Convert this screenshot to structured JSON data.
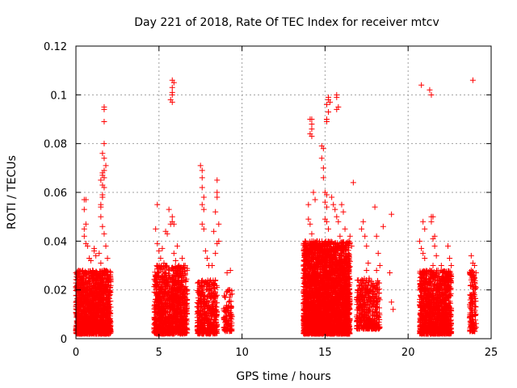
{
  "chart_data": {
    "type": "scatter",
    "title": "Day 221 of 2018, Rate Of TEC Index for receiver mtcv",
    "xlabel": "GPS time / hours",
    "ylabel": "ROTI / TECUs",
    "xlim": [
      0,
      25
    ],
    "ylim": [
      0,
      0.12
    ],
    "xticks": [
      0,
      5,
      10,
      15,
      20,
      25
    ],
    "xtick_labels": [
      "0",
      "5",
      "10",
      "15",
      "20",
      "25"
    ],
    "yticks": [
      0,
      0.02,
      0.04,
      0.06,
      0.08,
      0.1,
      0.12
    ],
    "ytick_labels": [
      "0",
      "0.02",
      "0.04",
      "0.06",
      "0.08",
      "0.1",
      "0.12"
    ],
    "grid": true,
    "marker": "+",
    "color": "#ff0000",
    "series": [
      {
        "name": "ROTI",
        "points": [
          [
            0.0,
            0.027
          ],
          [
            0.1,
            0.021
          ],
          [
            0.2,
            0.02
          ],
          [
            0.4,
            0.024
          ],
          [
            0.5,
            0.057
          ],
          [
            0.6,
            0.057
          ],
          [
            0.5,
            0.053
          ],
          [
            0.6,
            0.047
          ],
          [
            0.5,
            0.045
          ],
          [
            0.5,
            0.042
          ],
          [
            0.6,
            0.039
          ],
          [
            0.7,
            0.038
          ],
          [
            0.8,
            0.033
          ],
          [
            0.9,
            0.032
          ],
          [
            1.0,
            0.028
          ],
          [
            1.1,
            0.037
          ],
          [
            1.1,
            0.036
          ],
          [
            1.2,
            0.034
          ],
          [
            1.3,
            0.025
          ],
          [
            1.4,
            0.035
          ],
          [
            1.5,
            0.055
          ],
          [
            1.5,
            0.054
          ],
          [
            1.6,
            0.058
          ],
          [
            1.6,
            0.059
          ],
          [
            1.5,
            0.065
          ],
          [
            1.6,
            0.068
          ],
          [
            1.7,
            0.069
          ],
          [
            1.6,
            0.067
          ],
          [
            1.7,
            0.066
          ],
          [
            1.7,
            0.062
          ],
          [
            1.6,
            0.063
          ],
          [
            1.7,
            0.094
          ],
          [
            1.7,
            0.095
          ],
          [
            1.7,
            0.089
          ],
          [
            1.7,
            0.08
          ],
          [
            1.6,
            0.076
          ],
          [
            1.7,
            0.074
          ],
          [
            1.8,
            0.071
          ],
          [
            1.5,
            0.05
          ],
          [
            1.6,
            0.046
          ],
          [
            1.7,
            0.043
          ],
          [
            1.8,
            0.038
          ],
          [
            1.9,
            0.033
          ],
          [
            1.5,
            0.031
          ],
          [
            4.9,
            0.055
          ],
          [
            4.8,
            0.045
          ],
          [
            4.9,
            0.039
          ],
          [
            5.0,
            0.036
          ],
          [
            5.1,
            0.033
          ],
          [
            5.2,
            0.037
          ],
          [
            5.3,
            0.031
          ],
          [
            5.4,
            0.044
          ],
          [
            5.5,
            0.043
          ],
          [
            5.6,
            0.053
          ],
          [
            5.7,
            0.047
          ],
          [
            5.8,
            0.048
          ],
          [
            5.8,
            0.05
          ],
          [
            5.9,
            0.047
          ],
          [
            5.7,
            0.098
          ],
          [
            5.8,
            0.097
          ],
          [
            5.8,
            0.1
          ],
          [
            5.8,
            0.103
          ],
          [
            5.8,
            0.106
          ],
          [
            5.9,
            0.105
          ],
          [
            5.8,
            0.101
          ],
          [
            5.9,
            0.035
          ],
          [
            6.0,
            0.032
          ],
          [
            6.1,
            0.038
          ],
          [
            6.2,
            0.03
          ],
          [
            6.4,
            0.033
          ],
          [
            6.5,
            0.03
          ],
          [
            6.1,
            0.028
          ],
          [
            7.5,
            0.071
          ],
          [
            7.6,
            0.069
          ],
          [
            7.6,
            0.066
          ],
          [
            7.6,
            0.062
          ],
          [
            7.7,
            0.058
          ],
          [
            7.6,
            0.055
          ],
          [
            7.7,
            0.053
          ],
          [
            7.6,
            0.047
          ],
          [
            7.7,
            0.045
          ],
          [
            7.8,
            0.036
          ],
          [
            7.9,
            0.033
          ],
          [
            8.0,
            0.03
          ],
          [
            8.1,
            0.024
          ],
          [
            8.2,
            0.03
          ],
          [
            8.3,
            0.044
          ],
          [
            8.4,
            0.035
          ],
          [
            8.5,
            0.065
          ],
          [
            8.5,
            0.06
          ],
          [
            8.5,
            0.058
          ],
          [
            8.4,
            0.052
          ],
          [
            8.6,
            0.047
          ],
          [
            8.6,
            0.04
          ],
          [
            8.5,
            0.039
          ],
          [
            8.4,
            0.024
          ],
          [
            8.5,
            0.021
          ],
          [
            9.1,
            0.027
          ],
          [
            9.3,
            0.028
          ],
          [
            9.2,
            0.02
          ],
          [
            9.3,
            0.018
          ],
          [
            9.2,
            0.015
          ],
          [
            13.8,
            0.028
          ],
          [
            13.9,
            0.035
          ],
          [
            14.0,
            0.055
          ],
          [
            14.0,
            0.049
          ],
          [
            14.1,
            0.047
          ],
          [
            14.2,
            0.043
          ],
          [
            14.3,
            0.04
          ],
          [
            14.1,
            0.09
          ],
          [
            14.2,
            0.09
          ],
          [
            14.2,
            0.088
          ],
          [
            14.2,
            0.086
          ],
          [
            14.1,
            0.084
          ],
          [
            14.2,
            0.083
          ],
          [
            14.3,
            0.06
          ],
          [
            14.4,
            0.057
          ],
          [
            14.5,
            0.04
          ],
          [
            14.6,
            0.038
          ],
          [
            14.7,
            0.036
          ],
          [
            14.8,
            0.079
          ],
          [
            14.9,
            0.078
          ],
          [
            14.8,
            0.074
          ],
          [
            14.9,
            0.07
          ],
          [
            14.9,
            0.066
          ],
          [
            15.0,
            0.06
          ],
          [
            15.1,
            0.059
          ],
          [
            15.0,
            0.056
          ],
          [
            15.1,
            0.054
          ],
          [
            15.0,
            0.049
          ],
          [
            15.1,
            0.048
          ],
          [
            15.2,
            0.045
          ],
          [
            15.1,
            0.09
          ],
          [
            15.2,
            0.093
          ],
          [
            15.1,
            0.089
          ],
          [
            15.1,
            0.096
          ],
          [
            15.2,
            0.099
          ],
          [
            15.2,
            0.098
          ],
          [
            15.3,
            0.097
          ],
          [
            15.4,
            0.058
          ],
          [
            15.5,
            0.055
          ],
          [
            15.6,
            0.053
          ],
          [
            15.7,
            0.1
          ],
          [
            15.7,
            0.099
          ],
          [
            15.8,
            0.095
          ],
          [
            15.7,
            0.094
          ],
          [
            15.7,
            0.05
          ],
          [
            15.8,
            0.048
          ],
          [
            15.9,
            0.042
          ],
          [
            16.0,
            0.055
          ],
          [
            16.1,
            0.052
          ],
          [
            16.2,
            0.045
          ],
          [
            16.3,
            0.038
          ],
          [
            16.4,
            0.035
          ],
          [
            16.5,
            0.042
          ],
          [
            16.6,
            0.038
          ],
          [
            16.7,
            0.064
          ],
          [
            17.2,
            0.045
          ],
          [
            17.3,
            0.048
          ],
          [
            17.4,
            0.042
          ],
          [
            17.5,
            0.038
          ],
          [
            17.6,
            0.031
          ],
          [
            17.5,
            0.028
          ],
          [
            18.0,
            0.054
          ],
          [
            18.1,
            0.042
          ],
          [
            18.2,
            0.035
          ],
          [
            18.3,
            0.03
          ],
          [
            18.1,
            0.028
          ],
          [
            18.5,
            0.046
          ],
          [
            19.0,
            0.051
          ],
          [
            18.9,
            0.027
          ],
          [
            19.0,
            0.015
          ],
          [
            19.1,
            0.012
          ],
          [
            20.8,
            0.104
          ],
          [
            21.3,
            0.102
          ],
          [
            21.4,
            0.1
          ],
          [
            20.9,
            0.048
          ],
          [
            21.0,
            0.045
          ],
          [
            20.7,
            0.04
          ],
          [
            20.8,
            0.037
          ],
          [
            20.9,
            0.035
          ],
          [
            21.0,
            0.033
          ],
          [
            21.4,
            0.05
          ],
          [
            21.5,
            0.05
          ],
          [
            21.4,
            0.048
          ],
          [
            21.6,
            0.042
          ],
          [
            21.5,
            0.041
          ],
          [
            21.6,
            0.038
          ],
          [
            21.7,
            0.034
          ],
          [
            21.5,
            0.03
          ],
          [
            21.8,
            0.028
          ],
          [
            22.0,
            0.03
          ],
          [
            22.1,
            0.027
          ],
          [
            22.3,
            0.025
          ],
          [
            22.4,
            0.038
          ],
          [
            22.5,
            0.033
          ],
          [
            22.6,
            0.03
          ],
          [
            23.9,
            0.106
          ],
          [
            23.8,
            0.034
          ],
          [
            23.9,
            0.031
          ],
          [
            24.0,
            0.03
          ],
          [
            23.8,
            0.028
          ],
          [
            23.9,
            0.021
          ],
          [
            24.0,
            0.018
          ]
        ],
        "dense_bands": [
          {
            "x_range": [
              0.0,
              2.1
            ],
            "y_range": [
              0.002,
              0.028
            ],
            "density": 2.0
          },
          {
            "x_range": [
              4.7,
              6.7
            ],
            "y_range": [
              0.002,
              0.03
            ],
            "density": 1.4
          },
          {
            "x_range": [
              7.3,
              8.5
            ],
            "y_range": [
              0.002,
              0.024
            ],
            "density": 1.2
          },
          {
            "x_range": [
              8.9,
              9.4
            ],
            "y_range": [
              0.003,
              0.02
            ],
            "density": 0.9
          },
          {
            "x_range": [
              13.7,
              16.5
            ],
            "y_range": [
              0.002,
              0.04
            ],
            "density": 2.2
          },
          {
            "x_range": [
              16.9,
              18.3
            ],
            "y_range": [
              0.004,
              0.025
            ],
            "density": 1.0
          },
          {
            "x_range": [
              20.7,
              22.6
            ],
            "y_range": [
              0.002,
              0.028
            ],
            "density": 1.8
          },
          {
            "x_range": [
              23.7,
              24.1
            ],
            "y_range": [
              0.003,
              0.028
            ],
            "density": 1.0
          }
        ]
      }
    ]
  }
}
